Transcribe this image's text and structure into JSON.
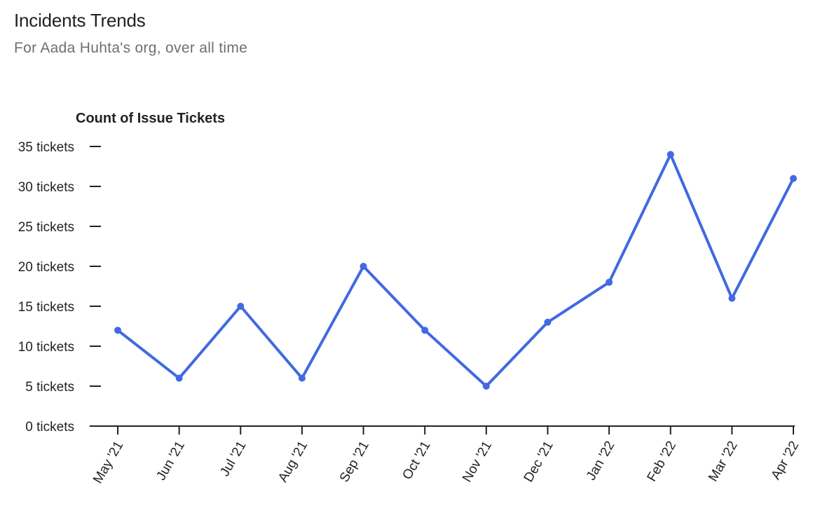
{
  "header": {
    "title": "Incidents Trends",
    "subtitle": "For Aada Huhta's org, over all time"
  },
  "chart_data": {
    "type": "line",
    "ylabel": "Count of Issue Tickets",
    "xlabel": "",
    "ylim": [
      0,
      35
    ],
    "yticks": [
      0,
      5,
      10,
      15,
      20,
      25,
      30,
      35
    ],
    "ytick_labels": [
      "0 tickets",
      "5 tickets",
      "10 tickets",
      "15 tickets",
      "20 tickets",
      "25 tickets",
      "30 tickets",
      "35 tickets"
    ],
    "categories": [
      "May '21",
      "Jun '21",
      "Jul '21",
      "Aug '21",
      "Sep '21",
      "Oct '21",
      "Nov '21",
      "Dec '21",
      "Jan '22",
      "Feb '22",
      "Mar '22",
      "Apr '22"
    ],
    "series": [
      {
        "values": [
          12,
          6,
          15,
          6,
          20,
          12,
          5,
          13,
          18,
          34,
          16,
          31
        ]
      }
    ],
    "grid": false,
    "line_color": "#4169e1"
  }
}
